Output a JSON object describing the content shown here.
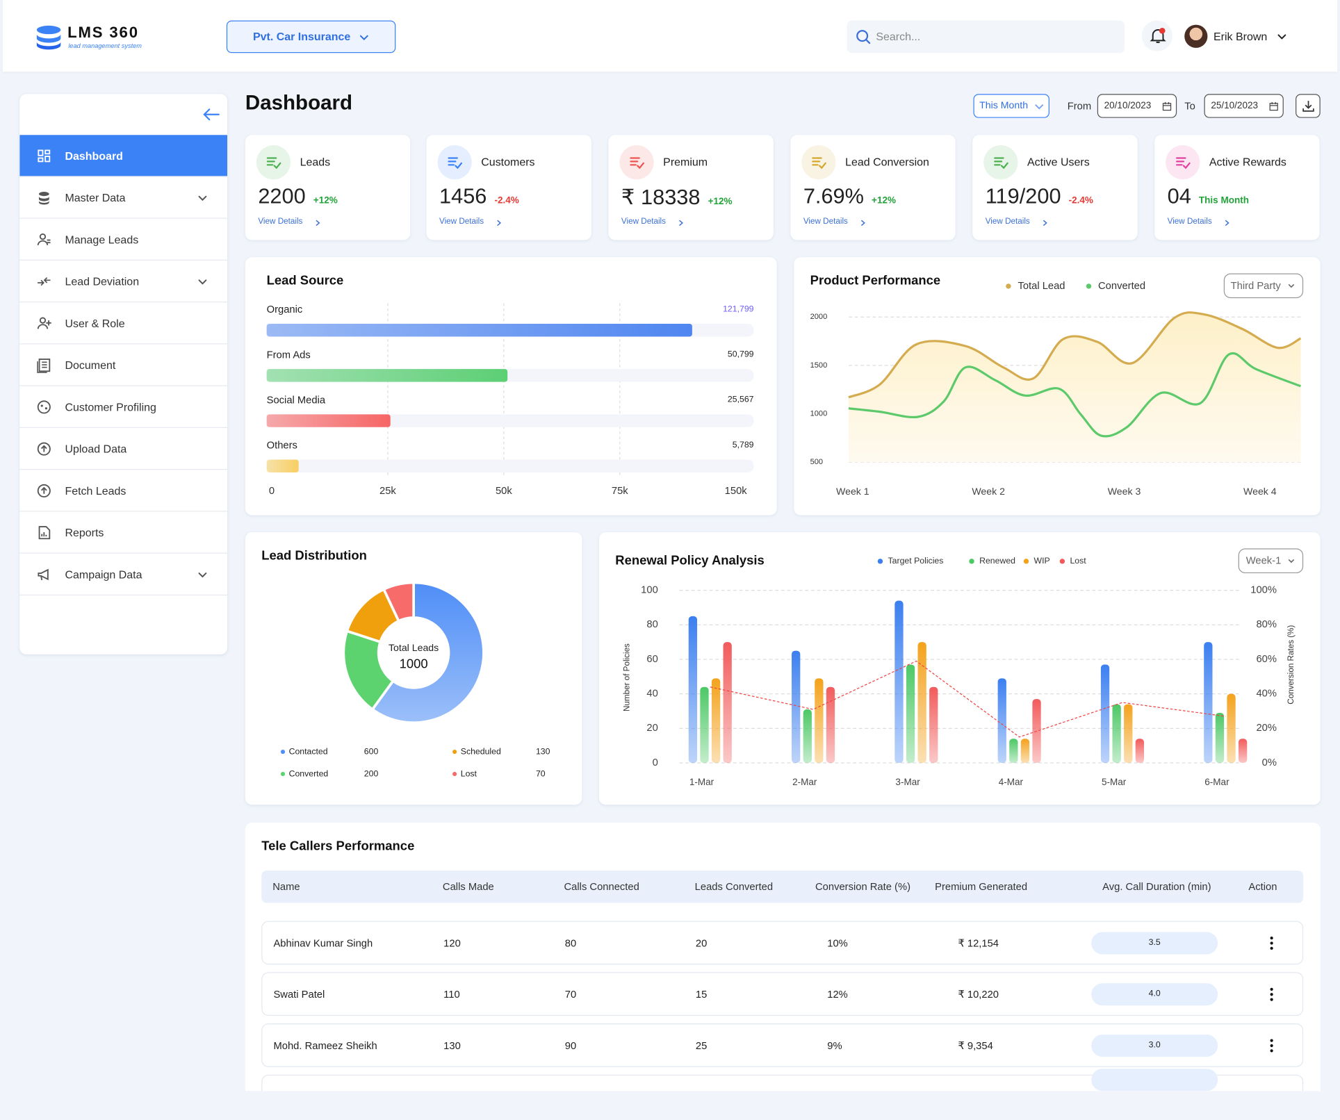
{
  "header": {
    "logo": "LMS 360",
    "logo_tagline": "lead management system",
    "product": "Pvt. Car Insurance",
    "search_placeholder": "Search...",
    "user": "Erik Brown"
  },
  "sidebar": {
    "items": [
      {
        "label": "Dashboard",
        "active": true
      },
      {
        "label": "Master Data",
        "expandable": true
      },
      {
        "label": "Manage Leads"
      },
      {
        "label": "Lead Deviation",
        "expandable": true
      },
      {
        "label": "User & Role"
      },
      {
        "label": "Document"
      },
      {
        "label": "Customer Profiling"
      },
      {
        "label": "Upload Data"
      },
      {
        "label": "Fetch Leads"
      },
      {
        "label": "Reports"
      },
      {
        "label": "Campaign Data",
        "expandable": true
      }
    ]
  },
  "page": {
    "title": "Dashboard",
    "period": "This Month",
    "from_label": "From",
    "from": "20/10/2023",
    "to_label": "To",
    "to": "25/10/2023"
  },
  "kpis": [
    {
      "label": "Leads",
      "value": "2200",
      "change": "+12%",
      "trend": "up",
      "link": "View Details",
      "color": "#4caf50"
    },
    {
      "label": "Customers",
      "value": "1456",
      "change": "-2.4%",
      "trend": "down",
      "link": "View Details",
      "color": "#3b82f6"
    },
    {
      "label": "Premium",
      "value": "₹ 18338",
      "change": "+12%",
      "trend": "up",
      "link": "View Details",
      "color": "#ef5350"
    },
    {
      "label": "Lead Conversion",
      "value": "7.69%",
      "change": "+12%",
      "trend": "up",
      "link": "View Details",
      "color": "#d4a72c"
    },
    {
      "label": "Active Users",
      "value": "119/200",
      "change": "-2.4%",
      "trend": "down",
      "link": "View Details",
      "color": "#4caf50"
    },
    {
      "label": "Active Rewards",
      "value": "04",
      "change": "This Month",
      "trend": "up",
      "link": "View Details",
      "color": "#e040a0"
    }
  ],
  "lead_source": {
    "type": "hbar",
    "title": "Lead Source",
    "categories": [
      "Organic",
      "From Ads",
      "Social Media",
      "Others"
    ],
    "values": [
      121799,
      50799,
      25567,
      5789
    ],
    "value_labels": [
      "121,799",
      "50,799",
      "25,567",
      "5,789"
    ],
    "colors": [
      "#4f86f0",
      "#5ccf74",
      "#f76565",
      "#f8cf62"
    ],
    "xlim": [
      0,
      150000
    ],
    "xticks": [
      0,
      {
        "value": 25000,
        "label": "25k"
      },
      {
        "value": 50000,
        "label": "50k"
      },
      {
        "value": 75000,
        "label": "75k"
      },
      {
        "value": 150000,
        "label": "150k"
      }
    ],
    "grid": true
  },
  "product_performance": {
    "type": "line",
    "title": "Product Performance",
    "dropdown": "Third Party",
    "series": [
      {
        "name": "Total Lead",
        "color": "#d4ab4f",
        "area": true,
        "x": [
          0.97,
          1.2,
          1.47,
          1.83,
          2.11,
          2.33,
          2.55,
          2.8,
          3.06,
          3.37,
          3.59,
          3.87,
          4.13,
          4.3
        ],
        "values": [
          1170,
          1303,
          1718,
          1700,
          1479,
          1365,
          1771,
          1744,
          1524,
          1991,
          2026,
          1876,
          1682,
          1779
        ]
      },
      {
        "name": "Converted",
        "color": "#5cc96b",
        "x": [
          0.97,
          1.2,
          1.48,
          1.67,
          1.83,
          2.05,
          2.27,
          2.52,
          2.68,
          2.83,
          3.02,
          3.27,
          3.56,
          3.77,
          3.97,
          4.3
        ],
        "values": [
          1056,
          1021,
          968,
          1126,
          1479,
          1347,
          1188,
          1259,
          994,
          774,
          862,
          1215,
          1109,
          1612,
          1462,
          1285
        ]
      }
    ],
    "xlim": [
      0.97,
      4.3
    ],
    "xticks": [
      {
        "value": 1,
        "label": "Week 1"
      },
      {
        "value": 2,
        "label": "Week 2"
      },
      {
        "value": 3,
        "label": "Week 3"
      },
      {
        "value": 4,
        "label": "Week 4"
      }
    ],
    "ylim": [
      500,
      2100
    ],
    "yticks": [
      500,
      1000,
      1500,
      2000
    ],
    "grid": true
  },
  "lead_distribution": {
    "type": "donut",
    "title": "Lead Distribution",
    "center_label": "Total Leads",
    "center_value": 1000,
    "categories": [
      "Contacted",
      "Converted",
      "Scheduled",
      "Lost"
    ],
    "values": [
      600,
      200,
      130,
      70
    ],
    "colors": [
      "#4f8ef7",
      "#5dd36f",
      "#f0a00c",
      "#f76b6b"
    ]
  },
  "renewal": {
    "type": "bar",
    "title": "Renewal Policy Analysis",
    "dropdown": "Week-1",
    "categories": [
      "1-Mar",
      "2-Mar",
      "3-Mar",
      "4-Mar",
      "5-Mar",
      "6-Mar"
    ],
    "series": [
      {
        "name": "Target Policies",
        "color": "#3b7ff0",
        "values": [
          85,
          65,
          94,
          49,
          57,
          70
        ]
      },
      {
        "name": "Renewed",
        "color": "#4cc865",
        "values": [
          44,
          31,
          57,
          14,
          34,
          29
        ]
      },
      {
        "name": "WIP",
        "color": "#f4a21c",
        "values": [
          49,
          49,
          70,
          14,
          34,
          40
        ]
      },
      {
        "name": "Lost",
        "color": "#f25b5b",
        "values": [
          70,
          44,
          44,
          37,
          14,
          14
        ]
      },
      {
        "type": "line",
        "axis": "y2",
        "color": "#ef4444",
        "values": [
          44,
          31,
          59,
          15,
          35,
          27
        ]
      }
    ],
    "ylim": [
      0,
      100
    ],
    "yticks": [
      0,
      20,
      40,
      60,
      80,
      100
    ],
    "y2lim": [
      0,
      100
    ],
    "y2ticks": [
      {
        "value": 0,
        "label": "0%"
      },
      {
        "value": 20,
        "label": "20%"
      },
      {
        "value": 40,
        "label": "40%"
      },
      {
        "value": 60,
        "label": "60%"
      },
      {
        "value": 80,
        "label": "80%"
      },
      {
        "value": 100,
        "label": "100%"
      }
    ],
    "ylabel": "Number of Policies",
    "y2label": "Conversion Rates (%)",
    "grid": true
  },
  "table": {
    "title": "Tele Callers Performance",
    "columns": [
      "Name",
      "Calls Made",
      "Calls Connected",
      "Leads Converted",
      "Conversion Rate (%)",
      "Premium Generated",
      "Avg. Call Duration (min)",
      "Action"
    ],
    "rows": [
      [
        "Abhinav Kumar Singh",
        "120",
        "80",
        "20",
        "10%",
        "₹ 12,154",
        "3.5"
      ],
      [
        "Swati Patel",
        "110",
        "70",
        "15",
        "12%",
        "₹ 10,220",
        "4.0"
      ],
      [
        "Mohd. Rameez Sheikh",
        "130",
        "90",
        "25",
        "9%",
        "₹ 9,354",
        "3.0"
      ]
    ]
  }
}
